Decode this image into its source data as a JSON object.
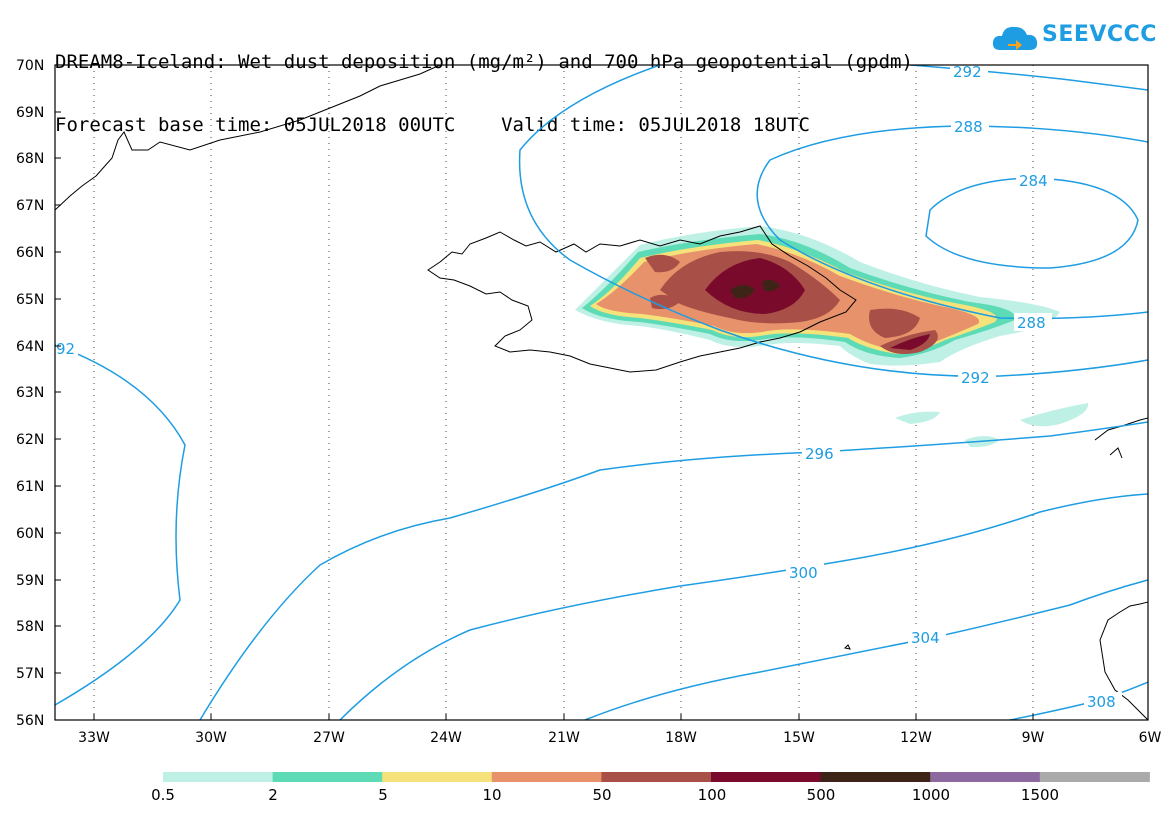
{
  "title": {
    "line1": "DREAM8-Iceland: Wet dust deposition (mg/m²) and 700 hPa geopotential (gpdm)",
    "line2": "Forecast base time: 05JUL2018 00UTC    Valid time: 05JUL2018 18UTC"
  },
  "logo": {
    "text": "SEEVCCC",
    "icon": "cloud-icon"
  },
  "colors": {
    "contour": "#1e9de2",
    "coast": "#000000"
  },
  "map": {
    "lon_ticks": [
      "33W",
      "30W",
      "27W",
      "24W",
      "21W",
      "18W",
      "15W",
      "12W",
      "9W",
      "6W"
    ],
    "lat_ticks": [
      "70N",
      "69N",
      "68N",
      "67N",
      "66N",
      "65N",
      "64N",
      "63N",
      "62N",
      "61N",
      "60N",
      "59N",
      "58N",
      "57N",
      "56N"
    ],
    "contour_labels": [
      "292",
      "288",
      "284",
      "288",
      "292",
      "296",
      "300",
      "304",
      "308",
      "92"
    ]
  },
  "legend": {
    "labels": [
      "0.5",
      "2",
      "5",
      "10",
      "50",
      "100",
      "500",
      "1000",
      "1500"
    ],
    "colors": [
      "#bff0e6",
      "#5ddbb6",
      "#f6e27a",
      "#e8926c",
      "#a85048",
      "#7a0a2c",
      "#3e2417",
      "#8c6aa0",
      "#aaaaaa"
    ]
  }
}
